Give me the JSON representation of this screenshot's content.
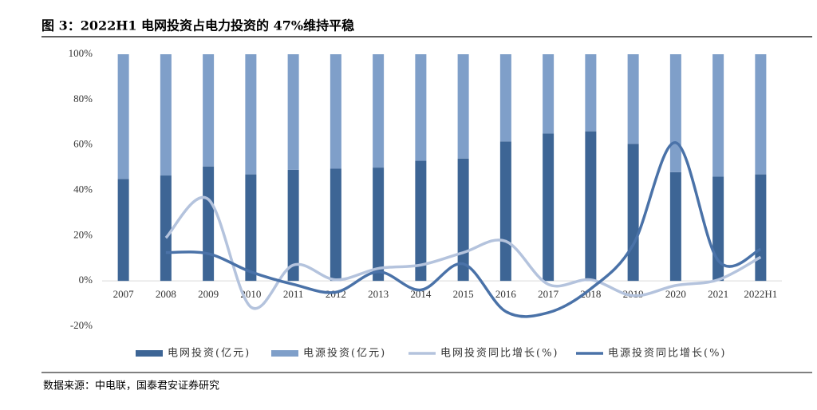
{
  "chart_data": {
    "type": "bar_line",
    "title": "图 3：2022H1 电网投资占电力投资的 47%维持平稳",
    "source": "数据来源：中电联，国泰君安证券研究",
    "categories": [
      "2007",
      "2008",
      "2009",
      "2010",
      "2011",
      "2012",
      "2013",
      "2014",
      "2015",
      "2016",
      "2017",
      "2018",
      "2019",
      "2020",
      "2021",
      "2022H1"
    ],
    "ylim": [
      -20,
      100
    ],
    "yticks": [
      {
        "value": -20,
        "label": "-20%"
      },
      {
        "value": 0,
        "label": "0%"
      },
      {
        "value": 20,
        "label": "20%"
      },
      {
        "value": 40,
        "label": "40%"
      },
      {
        "value": 60,
        "label": "60%"
      },
      {
        "value": 80,
        "label": "80%"
      },
      {
        "value": 100,
        "label": "100%"
      }
    ],
    "series": [
      {
        "name": "电网投资(亿元)",
        "kind": "bar",
        "color": "#3d6595",
        "values": [
          45,
          46.5,
          50.5,
          47,
          49,
          49.5,
          50,
          53,
          54,
          61.5,
          65,
          66,
          60.5,
          48,
          46,
          47
        ]
      },
      {
        "name": "电源投资(亿元)",
        "kind": "bar",
        "color": "#7f9fc9",
        "values": [
          55,
          53.5,
          49.5,
          53,
          51,
          50.5,
          50,
          47,
          46,
          38.5,
          35,
          34,
          39.5,
          52,
          54,
          53
        ]
      },
      {
        "name": "电网投资同比增长(%)",
        "kind": "line",
        "color": "#b4c3dd",
        "values": [
          null,
          19,
          36,
          -11.5,
          7,
          0.5,
          5.5,
          7,
          12.5,
          17.5,
          -1.5,
          0.5,
          -6.5,
          -2,
          0.5,
          10.5
        ]
      },
      {
        "name": "电源投资同比增长(%)",
        "kind": "line",
        "color": "#4a72a8",
        "values": [
          null,
          12.5,
          12,
          4,
          -1.5,
          -5,
          4,
          -4,
          7.5,
          -13.5,
          -14,
          -3.5,
          16,
          61,
          9,
          14
        ]
      }
    ]
  }
}
